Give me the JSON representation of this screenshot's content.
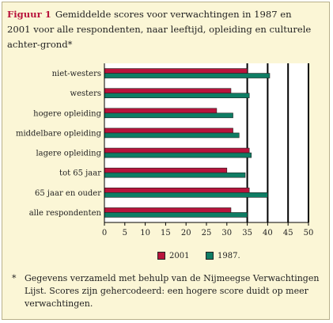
{
  "figure": {
    "label": "Figuur 1",
    "title": "Gemiddelde scores voor verwachtingen in 1987 en 2001 voor alle respondenten, naar leeftijd, opleiding en culturele achter-grond*"
  },
  "chart_data": {
    "type": "bar",
    "orientation": "horizontal",
    "categories": [
      "niet-westers",
      "westers",
      "hogere opleiding",
      "middelbare opleiding",
      "lagere opleiding",
      "tot 65 jaar",
      "65 jaar en ouder",
      "alle respondenten"
    ],
    "series": [
      {
        "name": "2001",
        "values": [
          35,
          31,
          27.5,
          31.5,
          35.5,
          30,
          35.5,
          31
        ],
        "color": "#b8143c"
      },
      {
        "name": "1987.",
        "values": [
          40.5,
          35.5,
          31.5,
          33,
          36,
          34.5,
          40,
          35
        ],
        "color": "#0e7d64"
      }
    ],
    "xlim": [
      0,
      50
    ],
    "xticks": [
      "0",
      "5",
      "10",
      "15",
      "20",
      "25",
      "30",
      "35",
      "40",
      "45",
      "50"
    ],
    "vertical_lines_at": [
      35,
      40,
      45,
      50
    ],
    "legend_position": "bottom"
  },
  "footnote": {
    "marker": "*",
    "text": "Gegevens verzameld met behulp van de Nijmeegse Verwachtingen Lijst. Scores zijn gehercodeerd: een hogere score duidt op meer verwachtingen."
  }
}
